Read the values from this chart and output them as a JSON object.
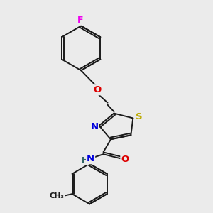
{
  "background_color": "#ebebeb",
  "bond_color": "#1a1a1a",
  "atom_colors": {
    "F": "#ee00ee",
    "O": "#dd0000",
    "N": "#0000dd",
    "S": "#bbaa00",
    "C": "#1a1a1a",
    "H": "#336666"
  },
  "figsize": [
    3.0,
    3.0
  ],
  "dpi": 100
}
